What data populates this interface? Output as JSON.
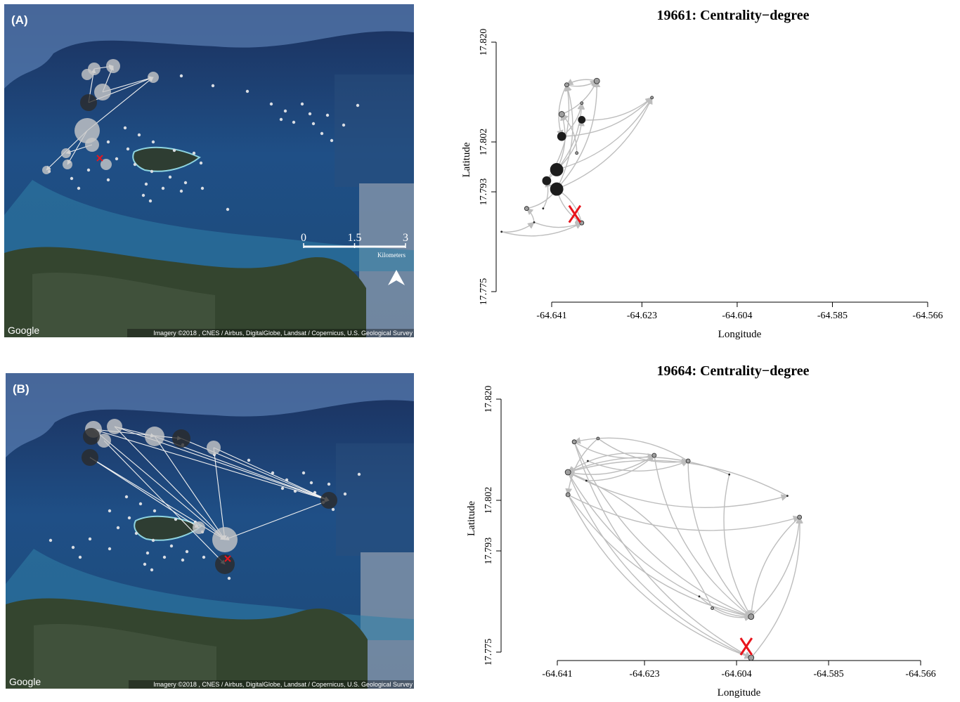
{
  "panels": [
    {
      "label": "(A)",
      "map": {
        "logo": "Google",
        "credit": "Imagery ©2018 , CNES / Airbus, DigitalGlobe, Landsat / Copernicus, U.S. Geological Survey",
        "scale_ticks": [
          0,
          1.5,
          3
        ],
        "scale_unit": "Kilometers"
      }
    },
    {
      "label": "(B)",
      "map": {
        "logo": "Google",
        "credit": "Imagery ©2018 , CNES / Airbus, DigitalGlobe, Landsat / Copernicus, U.S. Geological Survey"
      }
    }
  ],
  "chart_data": [
    {
      "type": "network",
      "title": "19661: Centrality−degree",
      "x_label": "Longitude",
      "y_label": "Latitude",
      "x": [
        -64.638,
        -64.632,
        -64.635,
        -64.621,
        -64.639,
        -64.635,
        -64.639,
        -64.636,
        -64.64,
        -64.642,
        -64.64,
        -64.646,
        -64.6445,
        -64.651,
        -64.6427,
        -64.635
      ],
      "y": [
        17.8123,
        17.813,
        17.809,
        17.81,
        17.807,
        17.806,
        17.803,
        17.8,
        17.797,
        17.795,
        17.7935,
        17.79,
        17.7875,
        17.7858,
        17.79,
        17.7874
      ],
      "sizes": [
        3,
        4,
        2,
        2,
        4,
        5,
        6,
        2,
        9,
        6,
        9,
        3,
        1,
        1,
        1,
        3
      ],
      "edges": [
        [
          0,
          1
        ],
        [
          1,
          0
        ],
        [
          0,
          6
        ],
        [
          4,
          1
        ],
        [
          5,
          3
        ],
        [
          6,
          3
        ],
        [
          8,
          3
        ],
        [
          10,
          0
        ],
        [
          10,
          1
        ],
        [
          8,
          4
        ],
        [
          9,
          0
        ],
        [
          11,
          10
        ],
        [
          12,
          11
        ],
        [
          13,
          12
        ],
        [
          14,
          9
        ],
        [
          15,
          10
        ],
        [
          10,
          15
        ],
        [
          8,
          5
        ],
        [
          7,
          4
        ],
        [
          9,
          2
        ],
        [
          13,
          15
        ],
        [
          12,
          15
        ],
        [
          6,
          2
        ],
        [
          10,
          3
        ]
      ],
      "edge_color": "#bdbdbd",
      "marker": {
        "x": -64.6364,
        "y": 17.789,
        "color": "#e8141c"
      },
      "xlim": [
        -64.641,
        -64.566
      ],
      "ylim": [
        17.775,
        17.82
      ],
      "xticks": [
        -64.641,
        -64.623,
        -64.604,
        -64.585,
        -64.566
      ],
      "yticks": [
        17.775,
        17.793,
        17.802,
        {
          "value": 17.82,
          "label": "17.820"
        }
      ]
    },
    {
      "type": "network",
      "title": "19664: Centrality−degree",
      "x_label": "Longitude",
      "y_label": "Latitude",
      "x": [
        -64.6375,
        -64.6326,
        -64.6388,
        -64.6388,
        -64.635,
        -64.6347,
        -64.621,
        -64.614,
        -64.6055,
        -64.5935,
        -64.591,
        -64.6117,
        -64.609,
        -64.601,
        -64.601
      ],
      "y": [
        17.8124,
        17.813,
        17.807,
        17.803,
        17.8055,
        17.809,
        17.81,
        17.809,
        17.8066,
        17.8028,
        17.799,
        17.7849,
        17.7828,
        17.7813,
        17.774
      ],
      "sizes": [
        3,
        2,
        4,
        3,
        1,
        1,
        3,
        3,
        1,
        1,
        3,
        1,
        2,
        4,
        4
      ],
      "edges": [
        [
          0,
          6
        ],
        [
          1,
          7
        ],
        [
          2,
          6
        ],
        [
          3,
          10
        ],
        [
          2,
          9
        ],
        [
          0,
          13
        ],
        [
          2,
          13
        ],
        [
          3,
          14
        ],
        [
          6,
          13
        ],
        [
          7,
          13
        ],
        [
          8,
          13
        ],
        [
          10,
          13
        ],
        [
          13,
          10
        ],
        [
          14,
          10
        ],
        [
          11,
          13
        ],
        [
          12,
          13
        ],
        [
          6,
          2
        ],
        [
          7,
          0
        ],
        [
          1,
          3
        ],
        [
          5,
          7
        ],
        [
          4,
          6
        ],
        [
          2,
          14
        ],
        [
          3,
          13
        ],
        [
          0,
          14
        ],
        [
          9,
          2
        ],
        [
          8,
          2
        ],
        [
          12,
          2
        ]
      ],
      "edge_color": "#bdbdbd",
      "marker": {
        "x": -64.602,
        "y": 17.776,
        "color": "#e8141c"
      },
      "xlim": [
        -64.641,
        -64.566
      ],
      "ylim": [
        17.775,
        17.82
      ],
      "xticks": [
        -64.641,
        -64.623,
        -64.604,
        -64.585,
        -64.566
      ],
      "yticks": [
        17.775,
        17.793,
        17.802,
        {
          "value": 17.82,
          "label": "17.820"
        }
      ]
    }
  ]
}
